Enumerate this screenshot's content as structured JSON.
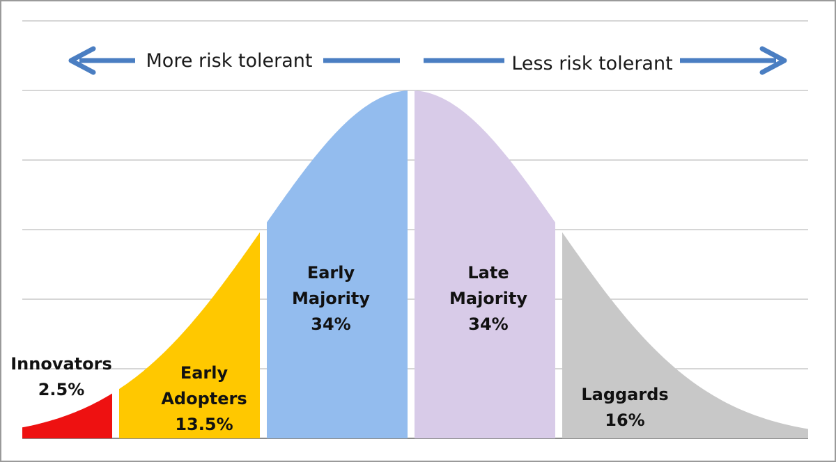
{
  "chart_data": {
    "type": "area",
    "title": "",
    "xlabel": "",
    "ylabel": "",
    "grid": true,
    "distribution": "normal",
    "segments": [
      {
        "name": "Innovators",
        "label_lines": [
          "Innovators",
          "2.5%"
        ],
        "share_percent": 2.5,
        "from_sd": -3.0,
        "to_sd": -2.0,
        "color": "#ee1111"
      },
      {
        "name": "Early Adopters",
        "label_lines": [
          "Early",
          "Adopters",
          "13.5%"
        ],
        "share_percent": 13.5,
        "from_sd": -2.0,
        "to_sd": -1.0,
        "color": "#ffc800"
      },
      {
        "name": "Early Majority",
        "label_lines": [
          "Early",
          "Majority",
          "34%"
        ],
        "share_percent": 34,
        "from_sd": -1.0,
        "to_sd": 0.0,
        "color": "#93bcee"
      },
      {
        "name": "Late Majority",
        "label_lines": [
          "Late",
          "Majority",
          "34%"
        ],
        "share_percent": 34,
        "from_sd": 0.0,
        "to_sd": 1.0,
        "color": "#d8cbe8"
      },
      {
        "name": "Laggards",
        "label_lines": [
          "Laggards",
          "16%"
        ],
        "share_percent": 16,
        "from_sd": 1.0,
        "to_sd": 2.6,
        "color": "#c8c8c8"
      }
    ],
    "annotations": {
      "left_arrow_text": "More risk tolerant",
      "right_arrow_text": "Less risk tolerant",
      "arrow_color": "#4a7ec2"
    }
  }
}
